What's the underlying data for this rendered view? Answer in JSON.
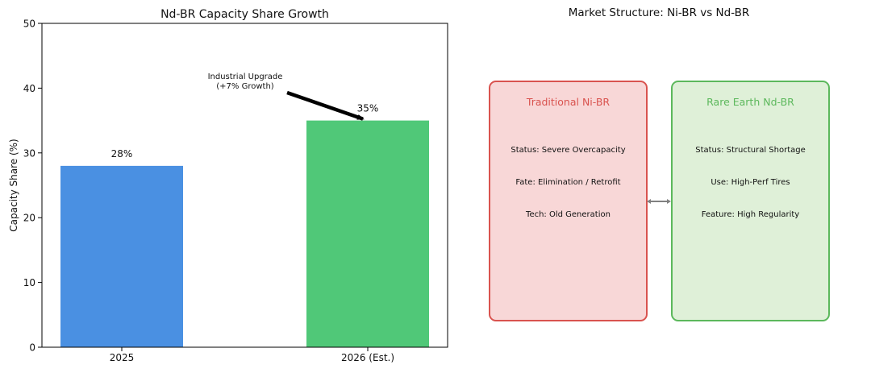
{
  "chart_data": {
    "type": "bar",
    "title": "Nd-BR Capacity Share Growth",
    "ylabel": "Capacity Share (%)",
    "xlabel": "",
    "ylim": [
      0,
      50
    ],
    "yticks": [
      0,
      10,
      20,
      30,
      40,
      50
    ],
    "categories": [
      "2025",
      "2026 (Est.)"
    ],
    "values": [
      28,
      35
    ],
    "value_labels": [
      "28%",
      "35%"
    ],
    "colors": [
      "#4a90e2",
      "#50c878"
    ],
    "annotation": {
      "text_lines": [
        "Industrial Upgrade",
        "(+7% Growth)"
      ],
      "points_to": "2026 (Est.)"
    }
  },
  "comparison": {
    "title": "Market Structure: Ni-BR vs Nd-BR",
    "left": {
      "title": "Traditional Ni-BR",
      "lines": [
        "Status: Severe Overcapacity",
        "Fate: Elimination / Retrofit",
        "Tech: Old Generation"
      ],
      "fill": "#f8d7d7",
      "border": "#d9534f",
      "title_color": "#d9534f"
    },
    "right": {
      "title": "Rare Earth Nd-BR",
      "lines": [
        "Status: Structural Shortage",
        "Use: High-Perf Tires",
        "Feature: High Regularity"
      ],
      "fill": "#dff0d8",
      "border": "#5cb85c",
      "title_color": "#5cb85c"
    },
    "connector_color": "#808080"
  }
}
